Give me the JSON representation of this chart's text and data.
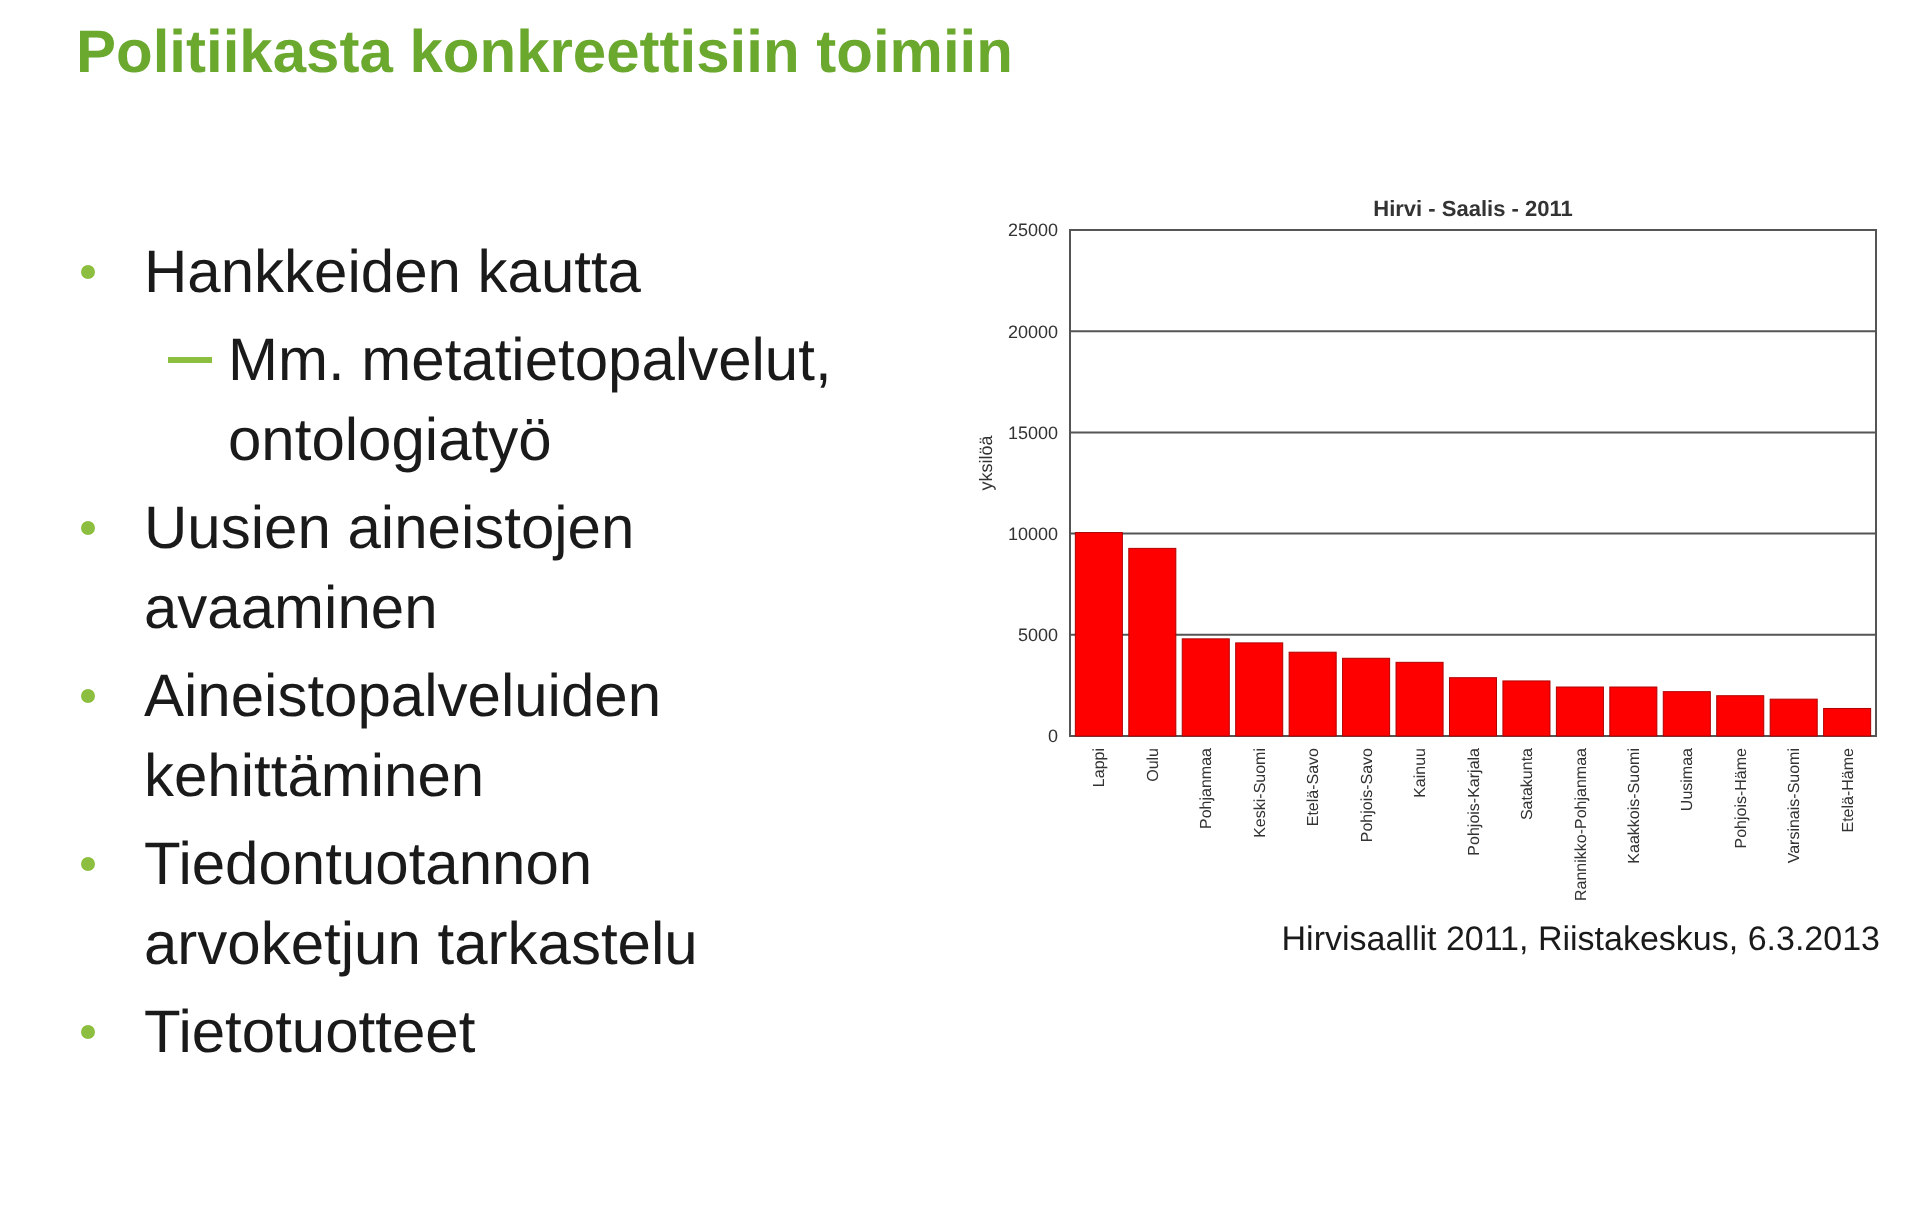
{
  "chart_data": [
    {
      "type": "other",
      "title": "Politiikasta konkreettisiin toimiin",
      "annotations": [
        "Hankkeiden kautta",
        "Mm. metatietopalvelut, ontologiatyö",
        "Uusien aineistojen avaaminen",
        "Aineistopalveluiden kehittäminen",
        "Tiedontuotannon arvoketjun tarkastelu",
        "Tietotuotteet"
      ]
    },
    {
      "type": "bar",
      "title": "Hirvi - Saalis - 2011",
      "ylabel": "yksilöä",
      "categories": [
        "Lappi",
        "Oulu",
        "Pohjanmaa",
        "Keski-Suomi",
        "Etelä-Savo",
        "Pohjois-Savo",
        "Kainuu",
        "Pohjois-Karjala",
        "Satakunta",
        "Rannikko-Pohjanmaa",
        "Kaakkois-Suomi",
        "Uusimaa",
        "Pohjois-Häme",
        "Varsinais-Suomi",
        "Etelä-Häme"
      ],
      "values": [
        10050,
        9270,
        4800,
        4600,
        4140,
        3840,
        3640,
        2880,
        2720,
        2420,
        2420,
        2190,
        1990,
        1820,
        1360
      ],
      "color": "#ff0000",
      "ylim": [
        0,
        25000
      ],
      "yticks": [
        0,
        5000,
        10000,
        15000,
        20000,
        25000
      ],
      "grid": "y",
      "annotations": [
        "Hirvisaallit 2011, Riistakeskus, 6.3.2013"
      ]
    }
  ]
}
